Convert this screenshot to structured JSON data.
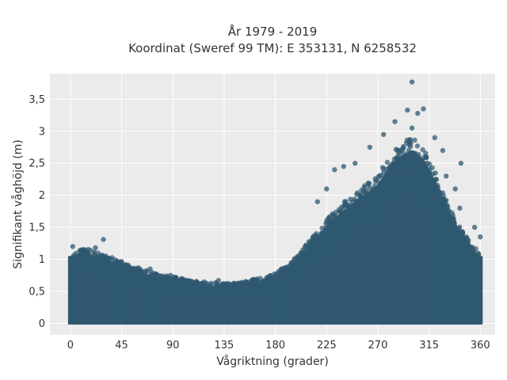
{
  "chart_data": {
    "type": "scatter",
    "title_lines": [
      "År 1979 - 2019",
      "Koordinat (Sweref 99 TM): E 353131, N 6258532"
    ],
    "xlabel": "Vågriktning (grader)",
    "ylabel": "Signifikant våghöjd (m)",
    "xlim": [
      -18,
      373
    ],
    "ylim": [
      -0.18,
      3.9
    ],
    "x_ticks": [
      0,
      45,
      90,
      135,
      180,
      225,
      270,
      315,
      360
    ],
    "y_ticks": [
      0,
      0.5,
      1,
      1.5,
      2,
      2.5,
      3,
      3.5
    ],
    "x_tick_labels": [
      "0",
      "45",
      "90",
      "135",
      "180",
      "225",
      "270",
      "315",
      "360"
    ],
    "y_tick_labels": [
      "0",
      "0,5",
      "1",
      "1,5",
      "2",
      "2,5",
      "3",
      "3,5"
    ],
    "grid": true,
    "legend": "none",
    "marker_color": "#2f5870",
    "background_color": "#ebebeb",
    "grid_color": "#ffffff",
    "envelope": {
      "direction_deg": [
        0,
        10,
        20,
        30,
        45,
        60,
        75,
        90,
        105,
        120,
        135,
        150,
        165,
        180,
        195,
        210,
        225,
        240,
        255,
        270,
        280,
        290,
        300,
        310,
        320,
        330,
        340,
        350,
        355,
        360
      ],
      "max_height_m": [
        1.05,
        1.1,
        1.05,
        1.0,
        0.9,
        0.8,
        0.72,
        0.68,
        0.62,
        0.6,
        0.58,
        0.6,
        0.65,
        0.72,
        0.9,
        1.2,
        1.5,
        1.75,
        1.95,
        2.15,
        2.4,
        2.6,
        2.7,
        2.55,
        2.2,
        1.8,
        1.45,
        1.2,
        1.1,
        1.05
      ]
    },
    "outliers": [
      {
        "x": 300,
        "y": 3.77
      },
      {
        "x": 296,
        "y": 3.33
      },
      {
        "x": 310,
        "y": 3.35
      },
      {
        "x": 285,
        "y": 3.15
      },
      {
        "x": 305,
        "y": 3.28
      },
      {
        "x": 300,
        "y": 3.05
      },
      {
        "x": 275,
        "y": 2.95
      },
      {
        "x": 263,
        "y": 2.75
      },
      {
        "x": 320,
        "y": 2.9
      },
      {
        "x": 327,
        "y": 2.7
      },
      {
        "x": 250,
        "y": 2.5
      },
      {
        "x": 240,
        "y": 2.45
      },
      {
        "x": 232,
        "y": 2.4
      },
      {
        "x": 343,
        "y": 2.5
      },
      {
        "x": 330,
        "y": 2.3
      },
      {
        "x": 338,
        "y": 2.1
      },
      {
        "x": 225,
        "y": 2.1
      },
      {
        "x": 217,
        "y": 1.9
      },
      {
        "x": 342,
        "y": 1.8
      },
      {
        "x": 355,
        "y": 1.5
      },
      {
        "x": 360,
        "y": 1.35
      },
      {
        "x": 29,
        "y": 1.31
      },
      {
        "x": 22,
        "y": 1.18
      },
      {
        "x": 2,
        "y": 1.2
      },
      {
        "x": 10,
        "y": 1.15
      },
      {
        "x": 45,
        "y": 0.95
      },
      {
        "x": 70,
        "y": 0.85
      },
      {
        "x": 88,
        "y": 0.75
      },
      {
        "x": 130,
        "y": 0.67
      },
      {
        "x": 160,
        "y": 0.68
      }
    ]
  }
}
